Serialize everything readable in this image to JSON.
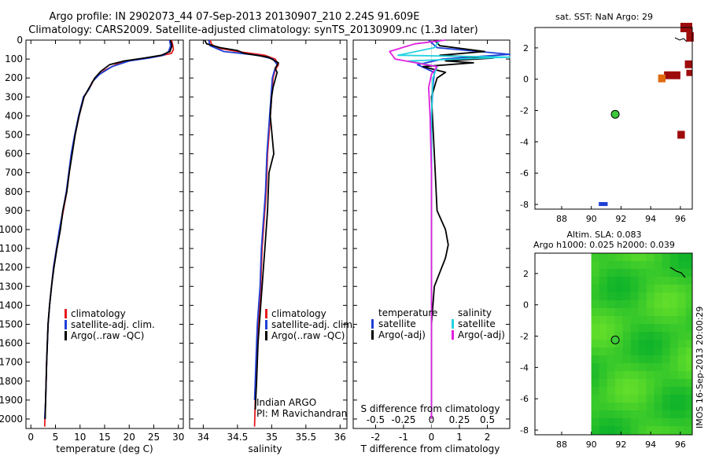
{
  "title": {
    "line1": "Argo profile: IN 2902073_44 07-Sep-2013 20130907_210 2.24S 91.609E",
    "line2": "Climatology: CARS2009. Satellite-adjusted climatology: synTS_20130909.nc (1.3d later)"
  },
  "colors": {
    "climatology": "#e41a1c",
    "satellite": "#1f3fd6",
    "argo": "#000000",
    "sal_satellite": "#22d3e0",
    "sal_argo": "#e020e0",
    "marker": "#3cc93c",
    "sst_dark": "#9e0b0b",
    "sst_orange": "#e06a10",
    "sla_green": "#33cc33"
  },
  "depth_ticks": [
    "0",
    "100",
    "200",
    "300",
    "400",
    "500",
    "600",
    "700",
    "800",
    "900",
    "1000",
    "1100",
    "1200",
    "1300",
    "1400",
    "1500",
    "1600",
    "1700",
    "1800",
    "1900",
    "2000"
  ],
  "chart_data": [
    {
      "id": "temperature",
      "type": "line",
      "xlabel": "temperature (deg C)",
      "xlim": [
        -1,
        31
      ],
      "ylim": [
        2050,
        0
      ],
      "xticks": [
        "0",
        "5",
        "10",
        "15",
        "20",
        "25",
        "30"
      ],
      "xtick_values": [
        0,
        5,
        10,
        15,
        20,
        25,
        30
      ],
      "legend": [
        "climatology",
        "satellite-adj. clim.",
        "Argo(..raw -QC)"
      ],
      "series": [
        {
          "name": "climatology",
          "color_key": "climatology",
          "x": [
            28.6,
            28.8,
            29.0,
            28.6,
            26.0,
            22.0,
            18.0,
            15.0,
            13.0,
            12.0,
            10.8,
            9.8,
            9.0,
            8.3,
            7.8,
            7.3,
            6.6,
            5.9,
            5.2,
            4.6,
            4.2,
            3.8,
            3.5,
            3.2,
            3.0,
            2.8
          ],
          "y": [
            0,
            20,
            50,
            70,
            85,
            100,
            120,
            160,
            200,
            250,
            300,
            400,
            500,
            600,
            700,
            800,
            900,
            1000,
            1100,
            1200,
            1300,
            1400,
            1500,
            1700,
            1900,
            2040
          ]
        },
        {
          "name": "satellite-adj. clim.",
          "color_key": "satellite",
          "x": [
            28.2,
            28.4,
            28.0,
            27.0,
            24.0,
            20.0,
            16.5,
            14.0,
            12.5,
            11.8,
            10.7,
            9.7,
            8.9,
            8.2,
            7.7,
            7.2,
            6.5,
            5.8,
            5.2,
            4.6,
            4.2,
            3.8,
            3.5,
            3.2,
            3.0,
            2.8
          ],
          "y": [
            0,
            30,
            60,
            80,
            95,
            110,
            140,
            180,
            220,
            260,
            300,
            400,
            500,
            600,
            700,
            800,
            900,
            1000,
            1100,
            1200,
            1300,
            1400,
            1500,
            1700,
            1900,
            2000
          ]
        },
        {
          "name": "Argo(..raw -QC)",
          "color_key": "argo",
          "x": [
            28.4,
            28.7,
            28.3,
            26.5,
            23.0,
            19.0,
            16.0,
            14.2,
            13.0,
            11.9,
            10.8,
            9.8,
            9.0,
            8.4,
            7.8,
            7.3,
            6.5,
            6.0,
            5.3,
            4.7,
            4.2,
            3.8,
            3.5,
            3.2,
            3.0,
            2.9
          ],
          "y": [
            0,
            30,
            60,
            80,
            95,
            110,
            130,
            165,
            200,
            250,
            300,
            400,
            500,
            600,
            700,
            800,
            900,
            1000,
            1100,
            1200,
            1300,
            1400,
            1500,
            1700,
            1900,
            2000
          ]
        }
      ]
    },
    {
      "id": "salinity",
      "type": "line",
      "xlabel": "salinity",
      "xlim": [
        33.8,
        36.1
      ],
      "ylim": [
        2050,
        0
      ],
      "xticks": [
        "34",
        "34.5",
        "35",
        "35.5",
        "36"
      ],
      "xtick_values": [
        34,
        34.5,
        35,
        35.5,
        36
      ],
      "legend": [
        "climatology",
        "satellite-adj. clim.",
        "Argo(..raw -QC)"
      ],
      "annotation": [
        "Indian ARGO",
        "PI: M Ravichandran"
      ],
      "series": [
        {
          "name": "climatology",
          "color_key": "climatology",
          "x": [
            34.1,
            34.12,
            34.18,
            34.5,
            34.9,
            35.05,
            35.1,
            35.05,
            35.02,
            35.0,
            34.98,
            34.96,
            34.94,
            34.93,
            34.92,
            34.9,
            34.88,
            34.86,
            34.85,
            34.84,
            34.82,
            34.8,
            34.78,
            34.76,
            34.75
          ],
          "y": [
            0,
            20,
            40,
            60,
            80,
            100,
            130,
            160,
            200,
            300,
            400,
            500,
            600,
            700,
            800,
            900,
            1000,
            1100,
            1200,
            1300,
            1400,
            1500,
            1700,
            1900,
            2040
          ]
        },
        {
          "name": "satellite-adj. clim.",
          "color_key": "satellite",
          "x": [
            34.08,
            34.1,
            34.3,
            34.8,
            35.02,
            35.08,
            35.04,
            35.01,
            34.99,
            34.97,
            34.95,
            34.93,
            34.92,
            34.91,
            34.89,
            34.87,
            34.85,
            34.84,
            34.83,
            34.81,
            34.79,
            34.77,
            34.75
          ],
          "y": [
            0,
            30,
            60,
            80,
            100,
            130,
            160,
            200,
            300,
            400,
            500,
            600,
            700,
            800,
            900,
            1000,
            1100,
            1200,
            1300,
            1400,
            1500,
            1700,
            1900
          ]
        },
        {
          "name": "Argo(..raw -QC)",
          "color_key": "argo",
          "x": [
            34.02,
            34.05,
            34.25,
            34.5,
            34.6,
            34.95,
            35.1,
            35.05,
            35.08,
            35.02,
            35.0,
            34.98,
            35.03,
            34.96,
            34.95,
            34.94,
            34.92,
            34.9,
            34.88,
            34.86,
            34.84,
            34.82,
            34.8,
            34.78,
            34.76
          ],
          "y": [
            0,
            20,
            40,
            55,
            70,
            90,
            120,
            150,
            170,
            250,
            300,
            400,
            600,
            700,
            800,
            900,
            1000,
            1100,
            1200,
            1300,
            1400,
            1500,
            1600,
            1800,
            1950
          ]
        }
      ]
    },
    {
      "id": "difference",
      "type": "line",
      "xlabel": "T difference from climatology",
      "xlabel_top": "S difference from climatology",
      "xlim": [
        -2.8,
        2.8
      ],
      "ylim": [
        2050,
        0
      ],
      "xticks": [
        "-2",
        "-1",
        "0",
        "1",
        "2"
      ],
      "xtick_values": [
        -2,
        -1,
        0,
        1,
        2
      ],
      "xticks_top": [
        "-0.5",
        "-0.25",
        "0",
        "0.25",
        "0.5"
      ],
      "xtick_top_values": [
        -2,
        -1,
        0,
        1,
        2
      ],
      "legend_temperature": {
        "title": "temperature",
        "items": [
          "satellite",
          "Argo(-adj)"
        ]
      },
      "legend_salinity": {
        "title": "salinity",
        "items": [
          "satellite",
          "Argo(-adj)"
        ]
      },
      "series": [
        {
          "name": "temperature satellite",
          "color_key": "satellite",
          "x": [
            -0.1,
            0.2,
            2.8,
            0.4,
            -0.5,
            0.1,
            0.05,
            0,
            0,
            0,
            0,
            0,
            0,
            0,
            0
          ],
          "y": [
            0,
            40,
            75,
            100,
            130,
            170,
            250,
            400,
            600,
            800,
            1000,
            1200,
            1500,
            1800,
            2000
          ]
        },
        {
          "name": "temperature Argo(-adj)",
          "color_key": "argo",
          "x": [
            0.1,
            0.3,
            1.9,
            0.3,
            2.2,
            0.5,
            1.5,
            -0.3,
            0.5,
            0.2,
            0,
            0.1,
            0.2,
            0.5,
            0.6,
            0.5,
            0.1,
            0,
            0,
            0,
            0
          ],
          "y": [
            0,
            30,
            60,
            80,
            95,
            110,
            120,
            140,
            170,
            200,
            300,
            600,
            900,
            1000,
            1080,
            1150,
            1300,
            1500,
            1700,
            1900,
            2000
          ]
        },
        {
          "name": "salinity satellite",
          "color_key": "sal_satellite",
          "x": [
            0.3,
            0.1,
            -1.2,
            2.8,
            -0.8,
            0.2,
            0.05,
            0,
            0,
            0,
            0,
            0,
            0
          ],
          "y": [
            0,
            40,
            80,
            90,
            110,
            140,
            200,
            400,
            700,
            1000,
            1400,
            1800,
            2000
          ]
        },
        {
          "name": "salinity Argo(-adj)",
          "color_key": "sal_argo",
          "x": [
            0.5,
            -0.6,
            -1.5,
            -1.3,
            0.2,
            0,
            -0.1,
            -0.05,
            0,
            0,
            0,
            0,
            0,
            0
          ],
          "y": [
            0,
            20,
            60,
            100,
            140,
            180,
            250,
            400,
            700,
            900,
            1200,
            1500,
            1800,
            2000
          ]
        }
      ]
    },
    {
      "id": "sst_map",
      "type": "heatmap",
      "title": "sat. SST: NaN Argo: 29",
      "xlim": [
        86.2,
        96.8
      ],
      "ylim": [
        -8.3,
        3.3
      ],
      "xticks": [
        "88",
        "90",
        "92",
        "94",
        "96"
      ],
      "xtick_values": [
        88,
        90,
        92,
        94,
        96
      ],
      "yticks": [
        "2",
        "0",
        "-2",
        "-4",
        "-6",
        "-8"
      ],
      "ytick_values": [
        2,
        0,
        -2,
        -4,
        -6,
        -8
      ],
      "argo_position": [
        91.61,
        -2.24
      ],
      "cells": [
        {
          "lon": 96.0,
          "lat": 3.0,
          "w": 0.8,
          "h": 0.6,
          "color_key": "sst_dark"
        },
        {
          "lon": 96.4,
          "lat": 2.4,
          "w": 0.5,
          "h": 0.6,
          "color_key": "sst_dark"
        },
        {
          "lon": 96.3,
          "lat": 0.7,
          "w": 0.5,
          "h": 0.5,
          "color_key": "sst_dark"
        },
        {
          "lon": 96.4,
          "lat": 0.2,
          "w": 0.4,
          "h": 0.4,
          "color_key": "sst_dark"
        },
        {
          "lon": 94.9,
          "lat": 0.0,
          "w": 1.1,
          "h": 0.5,
          "color_key": "sst_dark"
        },
        {
          "lon": 94.5,
          "lat": -0.2,
          "w": 0.5,
          "h": 0.5,
          "color_key": "sst_orange"
        },
        {
          "lon": 95.8,
          "lat": -3.8,
          "w": 0.5,
          "h": 0.5,
          "color_key": "sst_dark"
        },
        {
          "lon": 90.5,
          "lat": -8.1,
          "w": 0.6,
          "h": 0.25,
          "color_key": "satellite"
        }
      ]
    },
    {
      "id": "sla_map",
      "type": "heatmap",
      "title_line1": "Altim. SLA: 0.083",
      "title_line2": "Argo h1000: 0.025 h2000: 0.039",
      "xlim": [
        86.2,
        96.8
      ],
      "ylim": [
        -8.3,
        3.3
      ],
      "data_start_lon": 90.0,
      "xticks": [
        "88",
        "90",
        "92",
        "94",
        "96"
      ],
      "xtick_values": [
        88,
        90,
        92,
        94,
        96
      ],
      "yticks": [
        "2",
        "0",
        "-2",
        "-4",
        "-6",
        "-8"
      ],
      "ytick_values": [
        2,
        0,
        -2,
        -4,
        -6,
        -8
      ],
      "argo_position": [
        91.61,
        -2.24
      ]
    }
  ],
  "footer": {
    "timestamp": "IMOS 16-Sep-2013 20:00:29"
  }
}
